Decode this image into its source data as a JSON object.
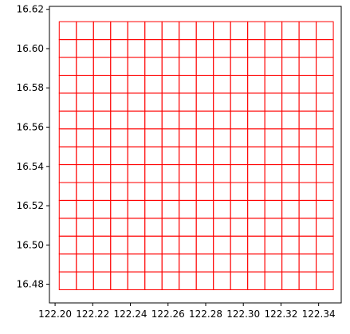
{
  "chart_data": {
    "type": "grid-polygons",
    "title": "",
    "xlabel": "",
    "ylabel": "",
    "xlim": [
      122.197,
      122.352
    ],
    "ylim": [
      16.4705,
      16.6215
    ],
    "grid": false,
    "legend": "none",
    "colors": {
      "cell_edge": "#ff0000",
      "axes": "#000000",
      "background": "#ffffff"
    },
    "x_ticks": [
      {
        "value": 122.2,
        "label": "122.20"
      },
      {
        "value": 122.22,
        "label": "122.22"
      },
      {
        "value": 122.24,
        "label": "122.24"
      },
      {
        "value": 122.26,
        "label": "122.26"
      },
      {
        "value": 122.28,
        "label": "122.28"
      },
      {
        "value": 122.3,
        "label": "122.30"
      },
      {
        "value": 122.32,
        "label": "122.32"
      },
      {
        "value": 122.34,
        "label": "122.34"
      }
    ],
    "y_ticks": [
      {
        "value": 16.48,
        "label": "16.48"
      },
      {
        "value": 16.5,
        "label": "16.50"
      },
      {
        "value": 16.52,
        "label": "16.52"
      },
      {
        "value": 16.54,
        "label": "16.54"
      },
      {
        "value": 16.56,
        "label": "16.56"
      },
      {
        "value": 16.58,
        "label": "16.58"
      },
      {
        "value": 16.6,
        "label": "16.60"
      },
      {
        "value": 16.62,
        "label": "16.62"
      }
    ],
    "cell_x_edges": [
      122.2022,
      122.2113,
      122.2204,
      122.2295,
      122.2386,
      122.2477,
      122.2568,
      122.2659,
      122.275,
      122.2841,
      122.2932,
      122.3023,
      122.3114,
      122.3205,
      122.3296,
      122.3387,
      122.3478
    ],
    "cell_y_edges": [
      16.4772,
      16.4863,
      16.4954,
      16.5045,
      16.5136,
      16.5227,
      16.5318,
      16.5409,
      16.55,
      16.5591,
      16.5682,
      16.5773,
      16.5864,
      16.5955,
      16.6046,
      16.6137
    ]
  }
}
